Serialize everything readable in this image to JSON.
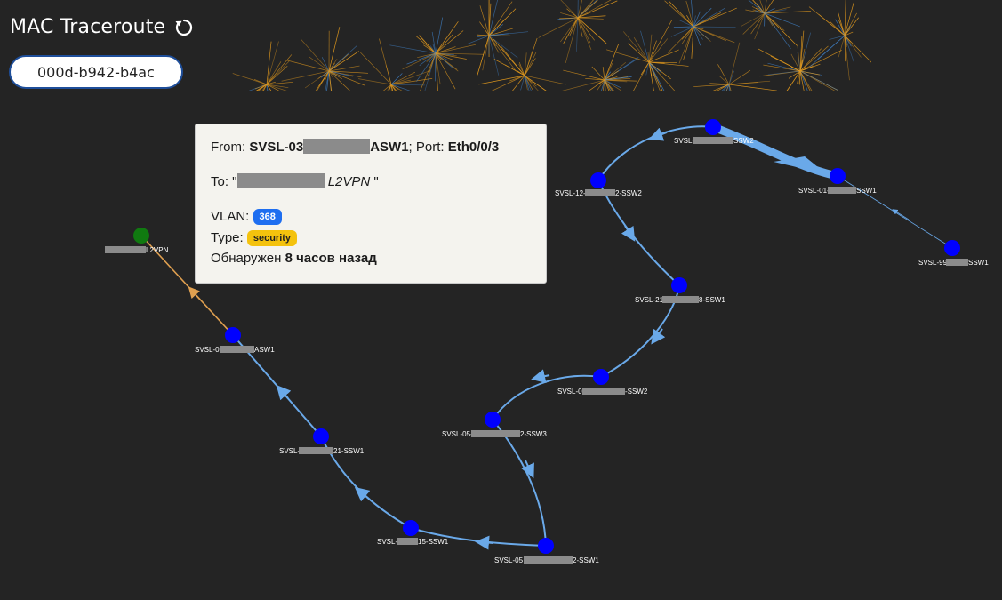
{
  "header": {
    "title": "MAC Traceroute",
    "refresh_icon": "refresh-icon"
  },
  "search": {
    "value": "000d-b942-b4ac"
  },
  "colors": {
    "background": "#242424",
    "node": "#0000ff",
    "origin_node": "#107a10",
    "link": "#6aa9e9",
    "origin_link": "#e0a050",
    "tooltip_bg": "#f4f3ee",
    "vlan_badge": "#1e6ef0",
    "type_badge": "#f4c20d"
  },
  "tooltip": {
    "from_label": "From:",
    "from_device_prefix": "SVSL-03",
    "from_device_suffix": "ASW1",
    "port_label": "; Port:",
    "port": "Eth0/0/3",
    "to_label": "To: \"",
    "to_value": "L2VPN",
    "to_close": " \"",
    "vlan_label": "VLAN:",
    "vlan": "368",
    "type_label": "Type:",
    "type": "security",
    "detected_label": "Обнаружен",
    "detected_value": "8 часов назад"
  },
  "graph": {
    "nodes": [
      {
        "id": "l2vpn",
        "pre": "",
        "post": "L2VPN"
      },
      {
        "id": "asw1",
        "pre": "SVSL-03",
        "post": "ASW1"
      },
      {
        "id": "ssw1a",
        "pre": "SVSL-",
        "post": "21-SSW1"
      },
      {
        "id": "ssw1b",
        "pre": "SVSL-",
        "post": "15-SSW1"
      },
      {
        "id": "ssw1c",
        "pre": "SVSL-05",
        "post": "2-SSW1"
      },
      {
        "id": "ssw3",
        "pre": "SVSL-05-",
        "post": "2-SSW3"
      },
      {
        "id": "ssw2a",
        "pre": "SVSL-0",
        "post": "-SSW2"
      },
      {
        "id": "ssw1d",
        "pre": "SVSL-21",
        "post": "8-SSW1"
      },
      {
        "id": "ssw2b",
        "pre": "SVSL-12-",
        "post": "2-SSW2"
      },
      {
        "id": "ssw2c",
        "pre": "SVSL-",
        "post": "SSW2"
      },
      {
        "id": "ssw1e",
        "pre": "SVSL-01-",
        "post": "SSW1"
      },
      {
        "id": "ssw1f",
        "pre": "SVSL-99",
        "post": "SSW1"
      }
    ]
  }
}
